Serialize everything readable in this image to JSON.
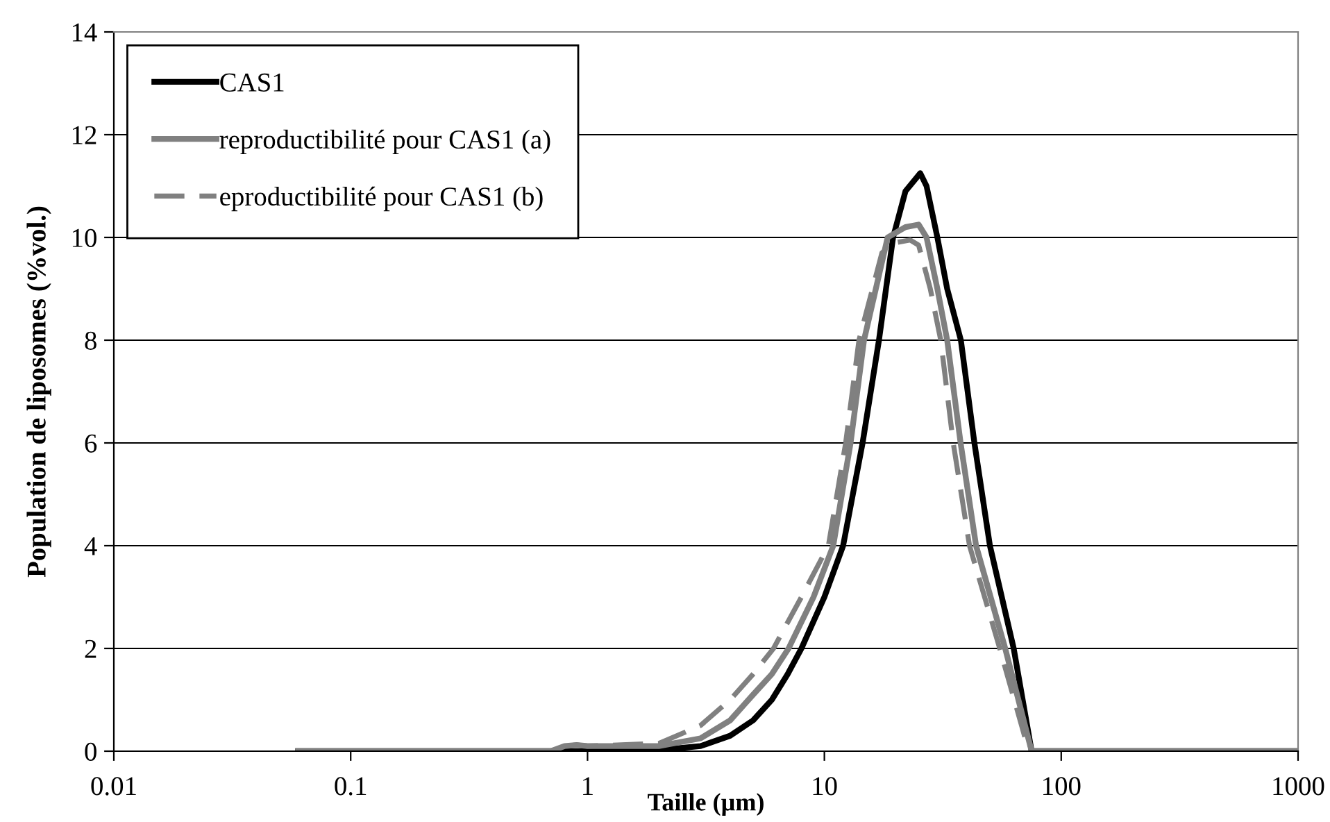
{
  "chart_data": {
    "type": "line",
    "xlabel": "Taille (µm)",
    "ylabel": "Population de liposomes (%vol.)",
    "log": "x",
    "xlim": [
      0.01,
      1000
    ],
    "xticks": [
      {
        "value": 0.01,
        "label": "0.01"
      },
      {
        "value": 0.1,
        "label": "0.1"
      },
      {
        "value": 1,
        "label": "1"
      },
      {
        "value": 10,
        "label": "10"
      },
      {
        "value": 100,
        "label": "100"
      },
      {
        "value": 1000,
        "label": "1000"
      }
    ],
    "ylim": [
      0,
      14
    ],
    "yticks": [
      0,
      2,
      4,
      6,
      8,
      10,
      12,
      14
    ],
    "grid": "y",
    "legend": "top left",
    "marker": "none",
    "series": [
      {
        "name": "CAS1",
        "color": "#000000",
        "line_style": "solid",
        "x": [
          0.06,
          1,
          2,
          3,
          4,
          5,
          6,
          7,
          8,
          10,
          12,
          14.5,
          17,
          19.5,
          22,
          25.4,
          27,
          30,
          33,
          37.7,
          43,
          50,
          63,
          75,
          100,
          1000
        ],
        "values": [
          0,
          0,
          0.02,
          0.1,
          0.3,
          0.6,
          1.0,
          1.5,
          2.0,
          3.0,
          4.0,
          6.0,
          8.0,
          10.0,
          10.9,
          11.25,
          11.0,
          10.0,
          9.0,
          8.0,
          6.0,
          4.0,
          2.0,
          0,
          0,
          0
        ]
      },
      {
        "name": "reproductibilité pour CAS1 (a)",
        "color": "#808080",
        "line_style": "solid",
        "x": [
          0.06,
          0.7,
          0.8,
          0.9,
          1,
          2,
          3,
          4,
          5,
          6,
          7.06,
          9,
          10.9,
          12.9,
          14.7,
          18.5,
          22,
          25,
          27,
          30,
          33,
          37.6,
          43.7,
          58,
          75,
          100,
          1000
        ],
        "values": [
          0,
          0,
          0.1,
          0.12,
          0.1,
          0.1,
          0.25,
          0.6,
          1.1,
          1.5,
          2.0,
          3.0,
          4.0,
          6.0,
          8.0,
          10.0,
          10.2,
          10.25,
          10.0,
          9.0,
          8.0,
          6.0,
          4.0,
          2.0,
          0,
          0,
          0
        ]
      },
      {
        "name": "eproductibilité pour CAS1 (b)",
        "color": "#808080",
        "line_style": "dashed",
        "x": [
          0.06,
          0.7,
          0.8,
          0.9,
          1,
          2,
          3,
          4,
          5,
          6.1,
          8,
          10.4,
          12.3,
          14,
          17.5,
          20,
          23,
          25,
          28,
          31,
          35,
          41,
          55,
          73,
          100,
          1000
        ],
        "values": [
          0,
          0,
          0.1,
          0.12,
          0.1,
          0.15,
          0.5,
          1.0,
          1.5,
          2.0,
          3.0,
          4.0,
          6.0,
          8.0,
          9.7,
          9.9,
          9.95,
          9.85,
          9.0,
          8.0,
          6.0,
          4.0,
          2.0,
          0,
          0,
          0
        ]
      }
    ]
  }
}
